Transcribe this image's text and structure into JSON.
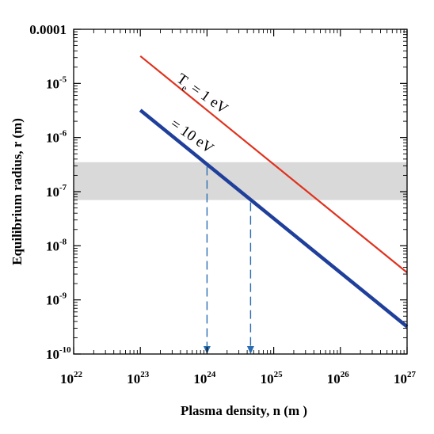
{
  "chart_data": {
    "type": "line",
    "xscale": "log",
    "yscale": "log",
    "xlim": [
      1e+22,
      1e+27
    ],
    "ylim": [
      1e-10,
      0.0001
    ],
    "xlabel": "Plasma density, n (m  )",
    "ylabel": "Equilibrium radius, r (m)",
    "x_ticks": [
      {
        "base": "10",
        "exp": "22"
      },
      {
        "base": "10",
        "exp": "23"
      },
      {
        "base": "10",
        "exp": "24"
      },
      {
        "base": "10",
        "exp": "25"
      },
      {
        "base": "10",
        "exp": "26"
      },
      {
        "base": "10",
        "exp": "27"
      }
    ],
    "y_ticks": [
      {
        "base": "10",
        "exp": "-10"
      },
      {
        "base": "10",
        "exp": "-9"
      },
      {
        "base": "10",
        "exp": "-8"
      },
      {
        "base": "10",
        "exp": "-7"
      },
      {
        "base": "10",
        "exp": "-6"
      },
      {
        "base": "10",
        "exp": "-5"
      },
      {
        "base": "0.0001",
        "exp": ""
      }
    ],
    "series": [
      {
        "name": "Te = 1 eV",
        "color": "#e0321e",
        "x": [
          1e+23,
          1e+27
        ],
        "y": [
          3.2e-05,
          3.2e-09
        ]
      },
      {
        "name": "= 10 eV",
        "color": "#1f3f9a",
        "x": [
          1e+23,
          1e+27
        ],
        "y": [
          3.2e-06,
          3.2e-10
        ]
      }
    ],
    "shaded_band": {
      "y": [
        7e-08,
        3.5e-07
      ],
      "color": "#d9d9d9"
    },
    "reference_lines": [
      {
        "x": 1e+24,
        "y_from": 3.2e-07,
        "y_to": 1e-10,
        "color": "#2a6db0",
        "style": "dashed"
      },
      {
        "x": 4.5e+24,
        "y_from": 7e-08,
        "y_to": 1e-10,
        "color": "#2a6db0",
        "style": "dashed"
      }
    ],
    "annotations": {
      "te_label": {
        "main": "T",
        "sub": "e",
        "rest": " = 1 eV"
      },
      "ten_label": "= 10 eV"
    }
  }
}
